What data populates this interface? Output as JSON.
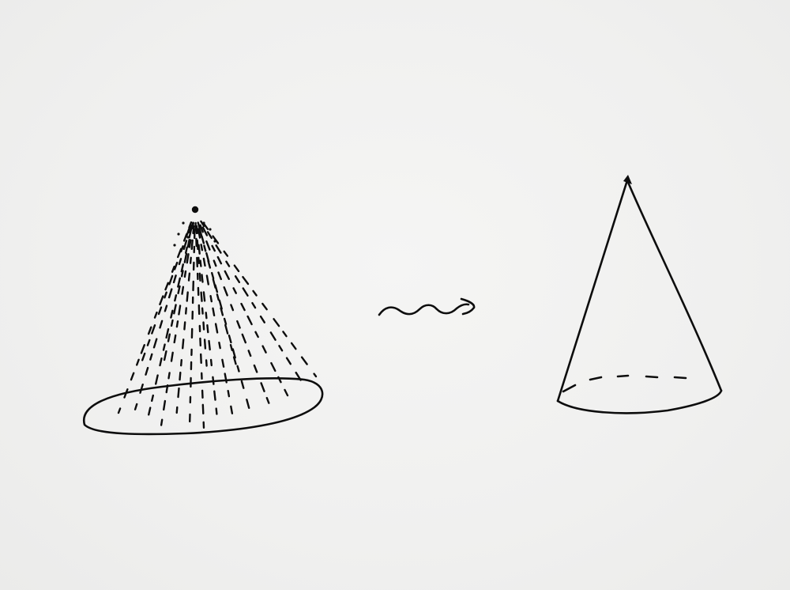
{
  "figure": {
    "background_color": "#f1f1f0",
    "ink_color": "#0d0d0d",
    "elements": [
      {
        "name": "dashed-cone",
        "description_kind": "cone-drawn-with-dashed-rays"
      },
      {
        "name": "squiggle-arrow",
        "description_kind": "wavy-arrow"
      },
      {
        "name": "solid-cone",
        "description_kind": "cone-drawn-with-solid-outline"
      }
    ]
  }
}
